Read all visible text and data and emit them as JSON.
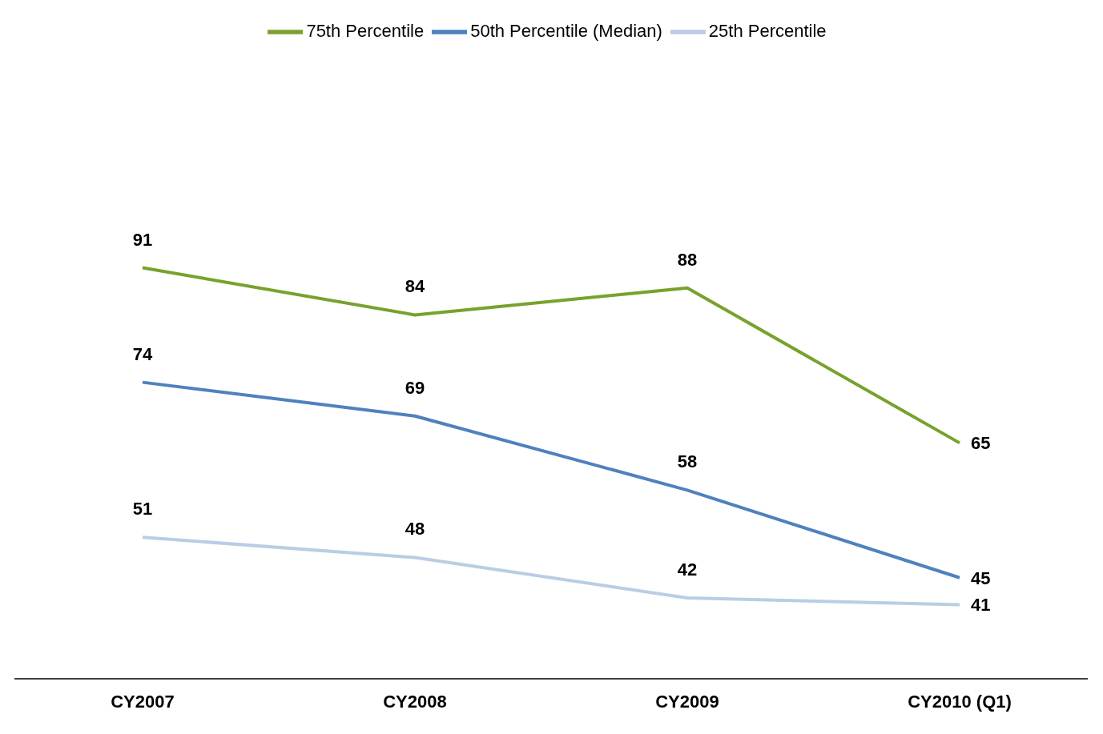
{
  "chart_data": {
    "type": "line",
    "categories": [
      "CY2007",
      "CY2008",
      "CY2009",
      "CY2010 (Q1)"
    ],
    "series": [
      {
        "name": "75th Percentile",
        "color": "#77a22d",
        "values": [
          91,
          84,
          88,
          65
        ]
      },
      {
        "name": "50th Percentile (Median)",
        "color": "#4f81bd",
        "values": [
          74,
          69,
          58,
          45
        ]
      },
      {
        "name": "25th Percentile",
        "color": "#b9cde5",
        "values": [
          51,
          48,
          42,
          41
        ]
      }
    ],
    "data_labels": true,
    "legend": "top",
    "grid": false,
    "marker": "none",
    "line_style": "solid"
  }
}
